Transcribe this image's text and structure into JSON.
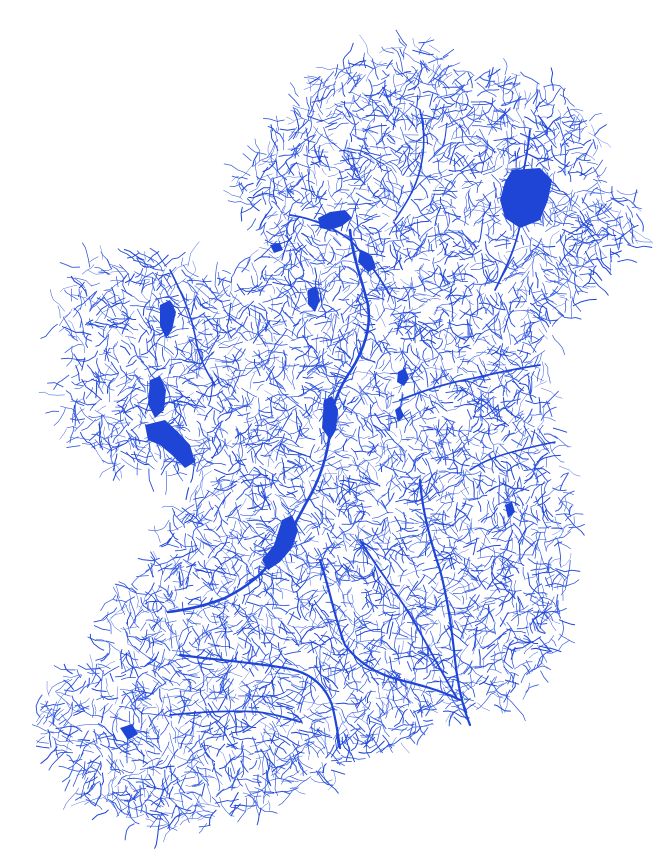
{
  "map": {
    "subject": "river-network-ireland",
    "colors": {
      "background": "#ffffff",
      "water": "#1f45d6",
      "water_light": "#3a5fe0"
    },
    "labels": [],
    "features": [
      {
        "name": "lough-neagh",
        "kind": "lake"
      },
      {
        "name": "lough-erne",
        "kind": "lake"
      },
      {
        "name": "lough-mask",
        "kind": "lake"
      },
      {
        "name": "lough-corrib",
        "kind": "lake"
      },
      {
        "name": "lough-ree",
        "kind": "lake"
      },
      {
        "name": "lough-derg",
        "kind": "lake"
      },
      {
        "name": "river-shannon",
        "kind": "river"
      },
      {
        "name": "river-barrow",
        "kind": "river"
      },
      {
        "name": "river-suir",
        "kind": "river"
      },
      {
        "name": "river-blackwater",
        "kind": "river"
      },
      {
        "name": "river-boyne",
        "kind": "river"
      },
      {
        "name": "river-bann",
        "kind": "river"
      }
    ]
  }
}
